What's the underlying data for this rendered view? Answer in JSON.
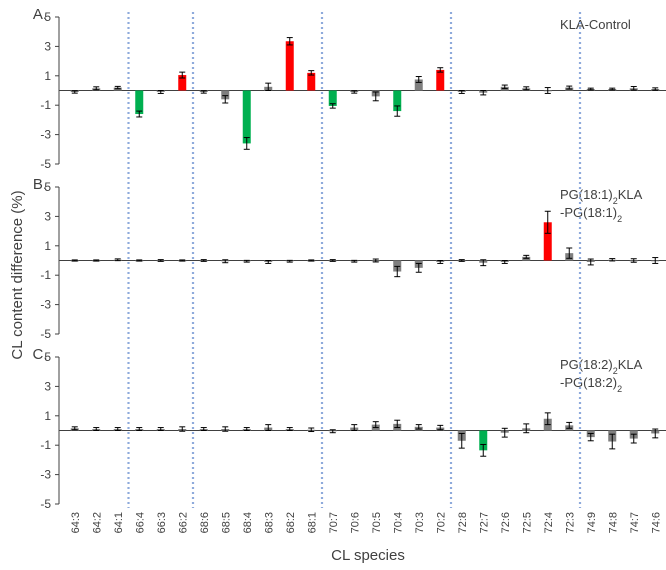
{
  "ylabel": "CL content difference (%)",
  "xlabel": "CL species",
  "colors": {
    "red": "#ff0000",
    "green": "#00b050",
    "gray": "#7f7f7f",
    "axis": "#404040",
    "divider": "#8eaadb"
  },
  "chart_data": [
    {
      "type": "bar",
      "panel_label": "A.",
      "legend_lines": [
        [
          "KLA-Control"
        ]
      ],
      "ylim": [
        -5,
        5
      ],
      "yticks": [
        "5",
        "3",
        "1",
        "-1",
        "-3",
        "-5"
      ],
      "categories": [
        "64:3",
        "64:2",
        "64:1",
        "66:4",
        "66:3",
        "66:2",
        "68:6",
        "68:5",
        "68:4",
        "68:3",
        "68:2",
        "68:1",
        "70:7",
        "70:6",
        "70:5",
        "70:4",
        "70:3",
        "70:2",
        "72:8",
        "72:7",
        "72:6",
        "72:5",
        "72:4",
        "72:3",
        "74:9",
        "74:8",
        "74:7",
        "74:6"
      ],
      "values": [
        -0.1,
        0.15,
        0.2,
        -1.6,
        -0.1,
        1.05,
        -0.1,
        -0.6,
        -3.6,
        0.25,
        3.35,
        1.2,
        -1.05,
        -0.1,
        -0.4,
        -1.4,
        0.75,
        1.4,
        -0.1,
        -0.15,
        0.25,
        0.15,
        0.0,
        0.2,
        0.1,
        0.1,
        0.15,
        0.1
      ],
      "errors": [
        0.08,
        0.1,
        0.08,
        0.2,
        0.1,
        0.2,
        0.08,
        0.25,
        0.4,
        0.25,
        0.25,
        0.15,
        0.15,
        0.08,
        0.3,
        0.35,
        0.2,
        0.15,
        0.1,
        0.15,
        0.12,
        0.1,
        0.2,
        0.1,
        0.06,
        0.06,
        0.12,
        0.08
      ],
      "bar_colors": [
        "gray",
        "gray",
        "gray",
        "green",
        "gray",
        "red",
        "gray",
        "gray",
        "green",
        "gray",
        "red",
        "red",
        "green",
        "gray",
        "gray",
        "green",
        "gray",
        "red",
        "gray",
        "gray",
        "gray",
        "gray",
        "gray",
        "gray",
        "gray",
        "gray",
        "gray",
        "gray"
      ]
    },
    {
      "type": "bar",
      "panel_label": "B.",
      "legend_lines": [
        [
          "PG(18:1)",
          "2",
          "KLA"
        ],
        [
          "-PG(18:1)",
          "2",
          ""
        ]
      ],
      "ylim": [
        -5,
        5
      ],
      "yticks": [
        "5",
        "3",
        "1",
        "-1",
        "-3",
        "-5"
      ],
      "categories": [
        "64:3",
        "64:2",
        "64:1",
        "66:4",
        "66:3",
        "66:2",
        "68:6",
        "68:5",
        "68:4",
        "68:3",
        "68:2",
        "68:1",
        "70:7",
        "70:6",
        "70:5",
        "70:4",
        "70:3",
        "70:2",
        "72:8",
        "72:7",
        "72:6",
        "72:5",
        "72:4",
        "72:3",
        "74:9",
        "74:8",
        "74:7",
        "74:6"
      ],
      "values": [
        0.0,
        0.0,
        0.05,
        0.0,
        0.0,
        0.0,
        0.0,
        -0.05,
        -0.05,
        -0.1,
        -0.05,
        0.0,
        0.0,
        -0.05,
        0.0,
        -0.75,
        -0.5,
        -0.1,
        0.0,
        -0.15,
        -0.1,
        0.25,
        2.6,
        0.5,
        -0.1,
        0.05,
        0.0,
        0.0
      ],
      "errors": [
        0.04,
        0.04,
        0.06,
        0.04,
        0.06,
        0.04,
        0.06,
        0.1,
        0.06,
        0.1,
        0.06,
        0.04,
        0.06,
        0.06,
        0.1,
        0.35,
        0.3,
        0.1,
        0.06,
        0.2,
        0.1,
        0.1,
        0.75,
        0.35,
        0.2,
        0.08,
        0.12,
        0.2
      ],
      "bar_colors": [
        "gray",
        "gray",
        "gray",
        "gray",
        "gray",
        "gray",
        "gray",
        "gray",
        "gray",
        "gray",
        "gray",
        "gray",
        "gray",
        "gray",
        "gray",
        "gray",
        "gray",
        "gray",
        "gray",
        "gray",
        "gray",
        "gray",
        "red",
        "gray",
        "gray",
        "gray",
        "gray",
        "gray"
      ]
    },
    {
      "type": "bar",
      "panel_label": "C.",
      "legend_lines": [
        [
          "PG(18:2)",
          "2",
          "KLA"
        ],
        [
          "-PG(18:2)",
          "2",
          ""
        ]
      ],
      "ylim": [
        -5,
        5
      ],
      "yticks": [
        "5",
        "3",
        "1",
        "-1",
        "-3",
        "-5"
      ],
      "xticks_shown": true,
      "categories": [
        "64:3",
        "64:2",
        "64:1",
        "66:4",
        "66:3",
        "66:2",
        "68:6",
        "68:5",
        "68:4",
        "68:3",
        "68:2",
        "68:1",
        "70:7",
        "70:6",
        "70:5",
        "70:4",
        "70:3",
        "70:2",
        "72:8",
        "72:7",
        "72:6",
        "72:5",
        "72:4",
        "72:3",
        "74:9",
        "74:8",
        "74:7",
        "74:6"
      ],
      "values": [
        0.15,
        0.1,
        0.1,
        0.1,
        0.1,
        0.1,
        0.1,
        0.1,
        0.1,
        0.2,
        0.1,
        0.05,
        -0.05,
        0.2,
        0.4,
        0.45,
        0.25,
        0.2,
        -0.7,
        -1.35,
        -0.15,
        0.15,
        0.8,
        0.35,
        -0.45,
        -0.75,
        -0.55,
        -0.2
      ],
      "errors": [
        0.1,
        0.1,
        0.1,
        0.1,
        0.1,
        0.15,
        0.1,
        0.15,
        0.1,
        0.2,
        0.1,
        0.12,
        0.1,
        0.2,
        0.2,
        0.25,
        0.15,
        0.15,
        0.5,
        0.4,
        0.3,
        0.3,
        0.4,
        0.2,
        0.25,
        0.5,
        0.3,
        0.3
      ],
      "bar_colors": [
        "gray",
        "gray",
        "gray",
        "gray",
        "gray",
        "gray",
        "gray",
        "gray",
        "gray",
        "gray",
        "gray",
        "gray",
        "gray",
        "gray",
        "gray",
        "gray",
        "gray",
        "gray",
        "gray",
        "green",
        "gray",
        "gray",
        "gray",
        "gray",
        "gray",
        "gray",
        "gray",
        "gray"
      ]
    }
  ]
}
